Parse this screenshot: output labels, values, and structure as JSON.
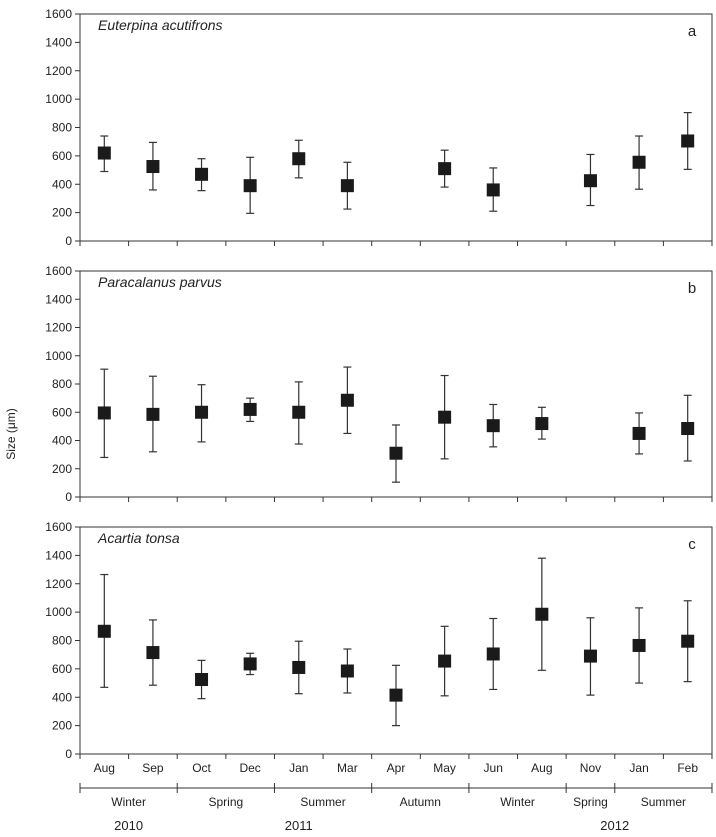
{
  "chart_data": {
    "type": "scatter",
    "ylabel": "Size (μm)",
    "categories": [
      "Aug",
      "Sep",
      "Oct",
      "Dec",
      "Jan",
      "Mar",
      "Apr",
      "May",
      "Jun",
      "Aug",
      "Nov",
      "Jan",
      "Feb"
    ],
    "ylim": [
      0,
      1600
    ],
    "yticks": [
      0,
      200,
      400,
      600,
      800,
      1000,
      1200,
      1400,
      1600
    ],
    "seasons": [
      "Winter",
      "Spring",
      "Summer",
      "Autumn",
      "Winter",
      "Spring",
      "Summer"
    ],
    "years": [
      "2010",
      "2011",
      "2012"
    ],
    "panels": [
      {
        "title": "Euterpina acutifrons",
        "letter": "a",
        "points": [
          {
            "category": "Aug",
            "mean": 620,
            "low": 490,
            "high": 740
          },
          {
            "category": "Sep",
            "mean": 525,
            "low": 360,
            "high": 695
          },
          {
            "category": "Oct",
            "mean": 470,
            "low": 355,
            "high": 580
          },
          {
            "category": "Dec",
            "mean": 390,
            "low": 195,
            "high": 590
          },
          {
            "category": "Jan",
            "mean": 580,
            "low": 445,
            "high": 710
          },
          {
            "category": "Mar",
            "mean": 390,
            "low": 225,
            "high": 555
          },
          {
            "category": "May",
            "mean": 510,
            "low": 380,
            "high": 640
          },
          {
            "category": "Jun",
            "mean": 360,
            "low": 210,
            "high": 515
          },
          {
            "category": "Nov",
            "mean": 425,
            "low": 250,
            "high": 610
          },
          {
            "category": "Jan",
            "mean": 555,
            "low": 365,
            "high": 740
          },
          {
            "category": "Feb",
            "mean": 705,
            "low": 505,
            "high": 905
          }
        ]
      },
      {
        "title": "Paracalanus parvus",
        "letter": "b",
        "points": [
          {
            "category": "Aug",
            "mean": 595,
            "low": 280,
            "high": 905
          },
          {
            "category": "Sep",
            "mean": 585,
            "low": 320,
            "high": 855
          },
          {
            "category": "Oct",
            "mean": 600,
            "low": 390,
            "high": 795
          },
          {
            "category": "Dec",
            "mean": 620,
            "low": 535,
            "high": 700
          },
          {
            "category": "Jan",
            "mean": 600,
            "low": 375,
            "high": 815
          },
          {
            "category": "Mar",
            "mean": 685,
            "low": 450,
            "high": 920
          },
          {
            "category": "Apr",
            "mean": 310,
            "low": 105,
            "high": 510
          },
          {
            "category": "May",
            "mean": 565,
            "low": 270,
            "high": 860
          },
          {
            "category": "Jun",
            "mean": 505,
            "low": 355,
            "high": 655
          },
          {
            "category": "Aug",
            "mean": 520,
            "low": 410,
            "high": 635
          },
          {
            "category": "Jan",
            "mean": 450,
            "low": 305,
            "high": 595
          },
          {
            "category": "Feb",
            "mean": 485,
            "low": 255,
            "high": 720
          }
        ]
      },
      {
        "title": "Acartia tonsa",
        "letter": "c",
        "points": [
          {
            "category": "Aug",
            "mean": 865,
            "low": 470,
            "high": 1265
          },
          {
            "category": "Sep",
            "mean": 715,
            "low": 485,
            "high": 945
          },
          {
            "category": "Oct",
            "mean": 525,
            "low": 390,
            "high": 660
          },
          {
            "category": "Dec",
            "mean": 635,
            "low": 560,
            "high": 710
          },
          {
            "category": "Jan",
            "mean": 610,
            "low": 425,
            "high": 795
          },
          {
            "category": "Mar",
            "mean": 585,
            "low": 430,
            "high": 740
          },
          {
            "category": "Apr",
            "mean": 415,
            "low": 200,
            "high": 625
          },
          {
            "category": "May",
            "mean": 655,
            "low": 410,
            "high": 900
          },
          {
            "category": "Jun",
            "mean": 705,
            "low": 455,
            "high": 955
          },
          {
            "category": "Aug",
            "mean": 985,
            "low": 590,
            "high": 1380
          },
          {
            "category": "Nov",
            "mean": 690,
            "low": 415,
            "high": 960
          },
          {
            "category": "Jan",
            "mean": 765,
            "low": 500,
            "high": 1030
          },
          {
            "category": "Feb",
            "mean": 795,
            "low": 510,
            "high": 1080
          }
        ]
      }
    ]
  }
}
